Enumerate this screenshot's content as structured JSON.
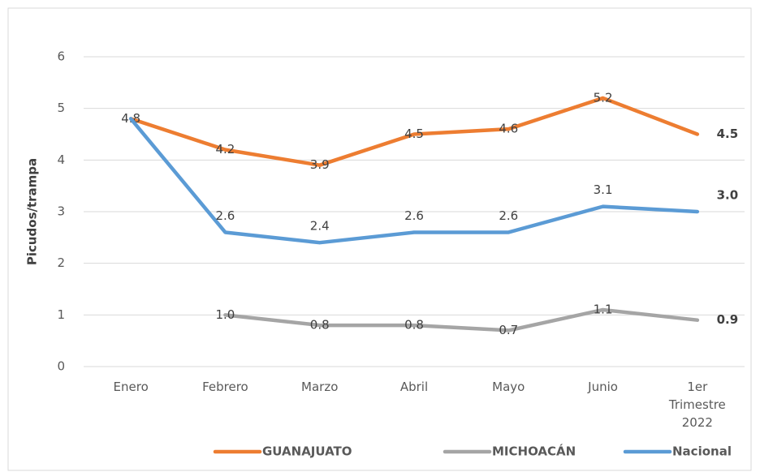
{
  "chart_data": {
    "type": "line",
    "y_axis_label": "Picudos/trampa",
    "categories": [
      "Enero",
      "Febrero",
      "Marzo",
      "Abril",
      "Mayo",
      "Junio",
      "1er Trimestre 2022"
    ],
    "series": [
      {
        "name": "GUANAJUATO",
        "color": "#ED7D31",
        "values": [
          4.8,
          4.2,
          3.9,
          4.5,
          4.6,
          5.2,
          4.5
        ],
        "value_labels": [
          "4.8",
          "4.2",
          "3.9",
          "4.5",
          "4.6",
          "5.2",
          "4.5"
        ]
      },
      {
        "name": "MICHOACÁN",
        "color": "#A5A5A5",
        "values": [
          null,
          1.0,
          0.8,
          0.8,
          0.7,
          1.1,
          0.9
        ],
        "value_labels": [
          null,
          "1.0",
          "0.8",
          "0.8",
          "0.7",
          "1.1",
          "0.9"
        ]
      },
      {
        "name": "Nacional",
        "color": "#5B9BD5",
        "values": [
          4.8,
          2.6,
          2.4,
          2.6,
          2.6,
          3.1,
          3.0
        ],
        "value_labels": [
          null,
          "2.6",
          "2.4",
          "2.6",
          "2.6",
          "3.1",
          "3.0"
        ]
      }
    ],
    "ylim": [
      0,
      6
    ],
    "yticks": [
      0,
      1,
      2,
      3,
      4,
      5,
      6
    ],
    "grid": true,
    "legend": "bottom"
  }
}
